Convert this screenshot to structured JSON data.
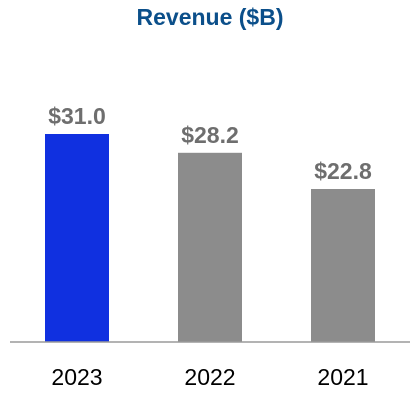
{
  "chart_data": {
    "type": "bar",
    "title": "Revenue ($B)",
    "categories": [
      "2023",
      "2022",
      "2021"
    ],
    "values": [
      31.0,
      28.2,
      22.8
    ],
    "data_labels": [
      "$31.0",
      "$28.2",
      "$22.8"
    ],
    "bar_colors": [
      "#1030e0",
      "#8c8c8c",
      "#8c8c8c"
    ],
    "title_color": "#0b4f8a",
    "label_color": "#6e6e6e",
    "axis_color": "#9a9a9a",
    "xlabel": "",
    "ylabel": "",
    "ylim": [
      0,
      31.0
    ],
    "grid": false,
    "legend": "none"
  }
}
